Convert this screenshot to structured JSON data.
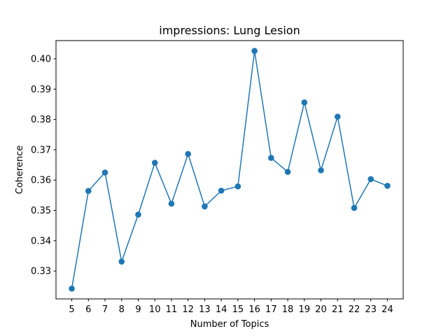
{
  "chart_data": {
    "type": "line",
    "title": "impressions: Lung Lesion",
    "xlabel": "Number of Topics",
    "ylabel": "Coherence",
    "x": [
      5,
      6,
      7,
      8,
      9,
      10,
      11,
      12,
      13,
      14,
      15,
      16,
      17,
      18,
      19,
      20,
      21,
      22,
      23,
      24
    ],
    "series": [
      {
        "values": [
          0.3242,
          0.3564,
          0.3625,
          0.3331,
          0.3486,
          0.3657,
          0.3522,
          0.3686,
          0.3513,
          0.3565,
          0.3579,
          0.4026,
          0.3673,
          0.3627,
          0.3856,
          0.3632,
          0.3809,
          0.3508,
          0.3603,
          0.3581
        ],
        "color": "#1f77b4",
        "marker": "circle"
      }
    ],
    "xlim": [
      4.05,
      24.95
    ],
    "ylim": [
      0.3208,
      0.406
    ],
    "yticks": [
      0.33,
      0.34,
      0.35,
      0.36,
      0.37,
      0.38,
      0.39,
      0.4
    ],
    "ytick_labels": [
      "0.33",
      "0.34",
      "0.35",
      "0.36",
      "0.37",
      "0.38",
      "0.39",
      "0.40"
    ],
    "grid": false,
    "legend": false
  }
}
